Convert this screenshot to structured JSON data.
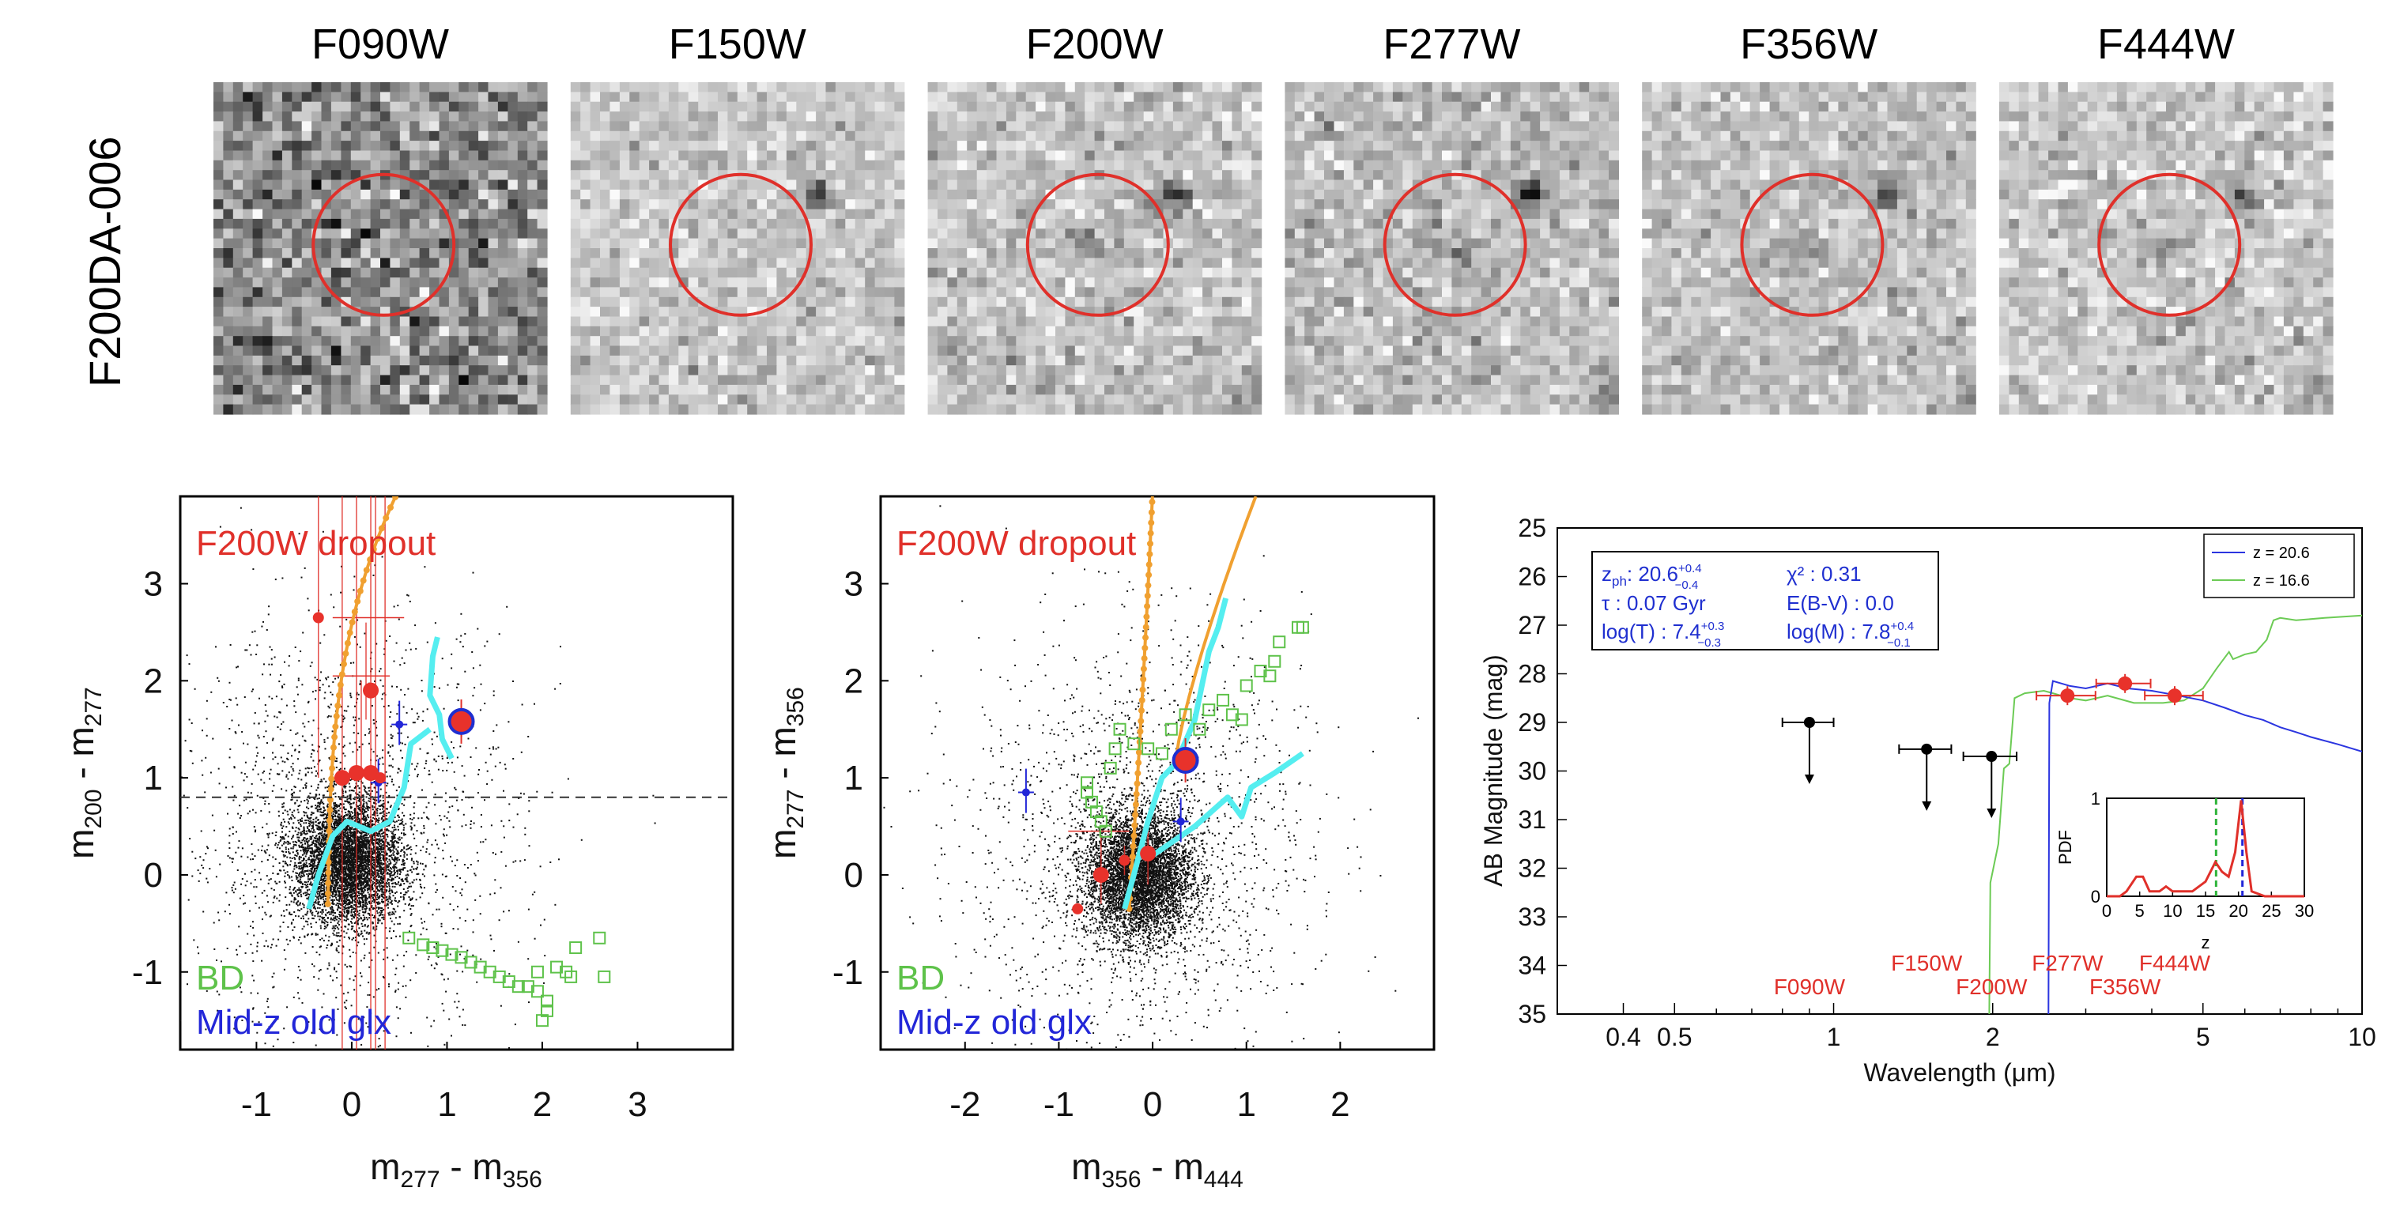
{
  "figure": {
    "object_id": "F200DA-006",
    "stamps": [
      "F090W",
      "F150W",
      "F200W",
      "F277W",
      "F356W",
      "F444W"
    ]
  },
  "chart_data": [
    {
      "type": "scatter",
      "panel": "color-color-1",
      "xlabel": "m",
      "xlabel_sub1": "277",
      "xlabel_mid": " - m",
      "xlabel_sub2": "356",
      "ylabel": "m",
      "ylabel_sub1": "200",
      "ylabel_mid": " - m",
      "ylabel_sub2": "277",
      "xlim": [
        -1.8,
        4.0
      ],
      "ylim": [
        -1.8,
        3.9
      ],
      "xticks": [
        "-1",
        "0",
        "1",
        "2",
        "3"
      ],
      "xtick_values": [
        -1,
        0,
        1,
        2,
        3
      ],
      "yticks": [
        "3",
        "2",
        "1",
        "0",
        "-1"
      ],
      "ytick_values": [
        3,
        2,
        1,
        0,
        -1
      ],
      "selection_cut_y": 0.8,
      "labels": {
        "dropout": "F200W dropout",
        "bd": "BD",
        "midz": "Mid-z old glx"
      },
      "target": {
        "x": 1.15,
        "y": 1.58
      },
      "candidates": [
        {
          "x": -0.35,
          "y": 2.65,
          "size": "small"
        },
        {
          "x": -0.1,
          "y": 1.0,
          "size": "large"
        },
        {
          "x": 0.05,
          "y": 1.05,
          "size": "large"
        },
        {
          "x": 0.2,
          "y": 1.9,
          "size": "large"
        },
        {
          "x": 0.2,
          "y": 1.05,
          "size": "large"
        },
        {
          "x": 0.3,
          "y": 1.0,
          "size": "small"
        }
      ],
      "midz": [
        {
          "x": 0.28,
          "y": 0.95
        },
        {
          "x": 0.5,
          "y": 1.55
        }
      ],
      "bd": [
        {
          "x": 0.6,
          "y": -0.65
        },
        {
          "x": 0.75,
          "y": -0.72
        },
        {
          "x": 0.85,
          "y": -0.75
        },
        {
          "x": 0.95,
          "y": -0.78
        },
        {
          "x": 1.05,
          "y": -0.82
        },
        {
          "x": 1.15,
          "y": -0.85
        },
        {
          "x": 1.25,
          "y": -0.9
        },
        {
          "x": 1.35,
          "y": -0.95
        },
        {
          "x": 1.45,
          "y": -1.0
        },
        {
          "x": 1.55,
          "y": -1.05
        },
        {
          "x": 1.65,
          "y": -1.1
        },
        {
          "x": 1.75,
          "y": -1.15
        },
        {
          "x": 1.85,
          "y": -1.15
        },
        {
          "x": 1.95,
          "y": -1.2
        },
        {
          "x": 2.05,
          "y": -1.3
        },
        {
          "x": 2.15,
          "y": -0.95
        },
        {
          "x": 2.25,
          "y": -1.0
        },
        {
          "x": 2.35,
          "y": -0.75
        },
        {
          "x": 1.95,
          "y": -1.0
        },
        {
          "x": 2.05,
          "y": -1.4
        },
        {
          "x": 2.0,
          "y": -1.5
        },
        {
          "x": 2.3,
          "y": -1.05
        },
        {
          "x": 2.6,
          "y": -0.65
        },
        {
          "x": 2.65,
          "y": -1.05
        }
      ]
    },
    {
      "type": "scatter",
      "panel": "color-color-2",
      "xlabel": "m",
      "xlabel_sub1": "356",
      "xlabel_mid": " - m",
      "xlabel_sub2": "444",
      "ylabel": "m",
      "ylabel_sub1": "277",
      "ylabel_mid": " - m",
      "ylabel_sub2": "356",
      "xlim": [
        -2.9,
        3.0
      ],
      "ylim": [
        -1.8,
        3.9
      ],
      "xticks": [
        "-2",
        "-1",
        "0",
        "1",
        "2"
      ],
      "xtick_values": [
        -2,
        -1,
        0,
        1,
        2
      ],
      "yticks": [
        "3",
        "2",
        "1",
        "0",
        "-1"
      ],
      "ytick_values": [
        3,
        2,
        1,
        0,
        -1
      ],
      "labels": {
        "dropout": "F200W dropout",
        "bd": "BD",
        "midz": "Mid-z old glx"
      },
      "target": {
        "x": 0.35,
        "y": 1.18
      },
      "candidates": [
        {
          "x": -0.55,
          "y": 0.0,
          "size": "large"
        },
        {
          "x": -0.8,
          "y": -0.35,
          "size": "small"
        },
        {
          "x": -0.05,
          "y": 0.22,
          "size": "large"
        },
        {
          "x": -0.3,
          "y": 0.15,
          "size": "small"
        }
      ],
      "midz": [
        {
          "x": -1.35,
          "y": 0.85
        },
        {
          "x": 0.3,
          "y": 0.55
        }
      ],
      "bd": [
        {
          "x": -0.7,
          "y": 0.95
        },
        {
          "x": -0.7,
          "y": 0.85
        },
        {
          "x": -0.65,
          "y": 0.75
        },
        {
          "x": -0.6,
          "y": 0.65
        },
        {
          "x": -0.55,
          "y": 0.55
        },
        {
          "x": -0.5,
          "y": 0.45
        },
        {
          "x": -0.45,
          "y": 1.1
        },
        {
          "x": -0.4,
          "y": 1.3
        },
        {
          "x": -0.35,
          "y": 1.5
        },
        {
          "x": -0.2,
          "y": 1.35
        },
        {
          "x": -0.05,
          "y": 1.3
        },
        {
          "x": 0.1,
          "y": 1.25
        },
        {
          "x": 0.2,
          "y": 1.5
        },
        {
          "x": 0.35,
          "y": 1.65
        },
        {
          "x": 0.5,
          "y": 1.5
        },
        {
          "x": 0.6,
          "y": 1.7
        },
        {
          "x": 0.75,
          "y": 1.8
        },
        {
          "x": 0.85,
          "y": 1.65
        },
        {
          "x": 0.95,
          "y": 1.6
        },
        {
          "x": 1.0,
          "y": 1.95
        },
        {
          "x": 1.15,
          "y": 2.1
        },
        {
          "x": 1.3,
          "y": 2.2
        },
        {
          "x": 1.25,
          "y": 2.05
        },
        {
          "x": 1.35,
          "y": 2.4
        },
        {
          "x": 1.55,
          "y": 2.55
        },
        {
          "x": 1.6,
          "y": 2.55
        }
      ]
    },
    {
      "type": "line",
      "panel": "sed",
      "xlabel": "Wavelength (μm)",
      "ylabel": "AB Magnitude (mag)",
      "xlim": [
        0.3,
        10
      ],
      "ylim": [
        35,
        25
      ],
      "xtick_labels": [
        "0.4",
        "0.5",
        "1",
        "2",
        "5",
        "10"
      ],
      "xtick_values": [
        0.4,
        0.5,
        1,
        2,
        5,
        10
      ],
      "ytick_labels": [
        "25",
        "26",
        "27",
        "28",
        "29",
        "30",
        "31",
        "32",
        "33",
        "34",
        "35"
      ],
      "ytick_values": [
        25,
        26,
        27,
        28,
        29,
        30,
        31,
        32,
        33,
        34,
        35
      ],
      "fit_box": {
        "zph": "z",
        "zph_sub": "ph",
        "zph_val": ": 20.6",
        "zph_up": "+0.4",
        "zph_lo": "−0.4",
        "chi2": "χ² : 0.31",
        "tau": "τ : 0.07  Gyr",
        "ebv": "E(B-V) : 0.0",
        "logT": "log(T) : 7.4",
        "logT_up": "+0.3",
        "logT_lo": "−0.3",
        "logM": "log(M) : 7.8",
        "logM_up": "+0.4",
        "logM_lo": "−0.1"
      },
      "legend": [
        {
          "label": "z = 20.6",
          "color": "#2b35e0"
        },
        {
          "label": "z = 16.6",
          "color": "#6ccb55"
        }
      ],
      "filters": [
        "F090W",
        "F150W",
        "F200W",
        "F277W",
        "F356W",
        "F444W"
      ],
      "upper_limits": [
        {
          "filter": "F090W",
          "wl": 0.9,
          "mag": 29.0,
          "xerr": [
            0.8,
            1.0
          ]
        },
        {
          "filter": "F150W",
          "wl": 1.5,
          "mag": 29.55,
          "xerr": [
            1.33,
            1.67
          ]
        },
        {
          "filter": "F200W",
          "wl": 1.99,
          "mag": 29.7,
          "xerr": [
            1.76,
            2.22
          ]
        }
      ],
      "detections": [
        {
          "filter": "F277W",
          "wl": 2.77,
          "mag": 28.45,
          "xerr": [
            2.42,
            3.13
          ]
        },
        {
          "filter": "F356W",
          "wl": 3.56,
          "mag": 28.2,
          "xerr": [
            3.14,
            3.98
          ]
        },
        {
          "filter": "F444W",
          "wl": 4.42,
          "mag": 28.45,
          "xerr": [
            3.88,
            5.0
          ]
        }
      ],
      "series_blue": [
        [
          2.55,
          35
        ],
        [
          2.56,
          28.6
        ],
        [
          2.6,
          28.15
        ],
        [
          2.7,
          28.2
        ],
        [
          2.8,
          28.25
        ],
        [
          3.0,
          28.3
        ],
        [
          3.3,
          28.2
        ],
        [
          3.6,
          28.3
        ],
        [
          4.0,
          28.35
        ],
        [
          4.5,
          28.45
        ],
        [
          5.0,
          28.55
        ],
        [
          5.5,
          28.7
        ],
        [
          6.0,
          28.85
        ],
        [
          6.5,
          28.95
        ],
        [
          7.0,
          29.1
        ],
        [
          7.5,
          29.2
        ],
        [
          8.0,
          29.3
        ],
        [
          9.0,
          29.45
        ],
        [
          10.0,
          29.6
        ]
      ],
      "series_green": [
        [
          1.97,
          35
        ],
        [
          1.98,
          32.3
        ],
        [
          2.05,
          31.5
        ],
        [
          2.1,
          29.95
        ],
        [
          2.15,
          29.85
        ],
        [
          2.2,
          28.5
        ],
        [
          2.3,
          28.4
        ],
        [
          2.5,
          28.35
        ],
        [
          2.6,
          28.4
        ],
        [
          2.8,
          28.5
        ],
        [
          3.0,
          28.55
        ],
        [
          3.3,
          28.45
        ],
        [
          3.7,
          28.6
        ],
        [
          4.2,
          28.6
        ],
        [
          4.6,
          28.55
        ],
        [
          5.0,
          28.3
        ],
        [
          5.3,
          27.9
        ],
        [
          5.6,
          27.55
        ],
        [
          5.7,
          27.7
        ],
        [
          6.0,
          27.6
        ],
        [
          6.3,
          27.55
        ],
        [
          6.6,
          27.3
        ],
        [
          6.8,
          26.9
        ],
        [
          7.0,
          26.85
        ],
        [
          7.5,
          26.9
        ],
        [
          8.5,
          26.85
        ],
        [
          10.0,
          26.8
        ]
      ],
      "pdf_inset": {
        "ylabel": "PDF",
        "xlabel": "z",
        "xlim": [
          0,
          30
        ],
        "ylim": [
          0,
          1
        ],
        "xtick_labels": [
          "0",
          "5",
          "10",
          "15",
          "20",
          "25",
          "30"
        ],
        "xtick_values": [
          0,
          5,
          10,
          15,
          20,
          25,
          30
        ],
        "ytick_labels": [
          "0",
          "1"
        ],
        "ytick_values": [
          0,
          1
        ],
        "best_z": 20.6,
        "alt_z": 16.6,
        "pdf": [
          [
            0,
            0.0
          ],
          [
            2,
            0.0
          ],
          [
            3,
            0.05
          ],
          [
            4.5,
            0.2
          ],
          [
            5.5,
            0.2
          ],
          [
            6.5,
            0.05
          ],
          [
            8,
            0.05
          ],
          [
            9,
            0.1
          ],
          [
            10,
            0.05
          ],
          [
            13,
            0.05
          ],
          [
            15,
            0.15
          ],
          [
            16.5,
            0.35
          ],
          [
            17.5,
            0.25
          ],
          [
            18.5,
            0.2
          ],
          [
            19.5,
            0.45
          ],
          [
            20.4,
            0.98
          ],
          [
            21.2,
            0.45
          ],
          [
            22,
            0.05
          ],
          [
            24,
            0.0
          ],
          [
            30,
            0.0
          ]
        ]
      }
    }
  ]
}
